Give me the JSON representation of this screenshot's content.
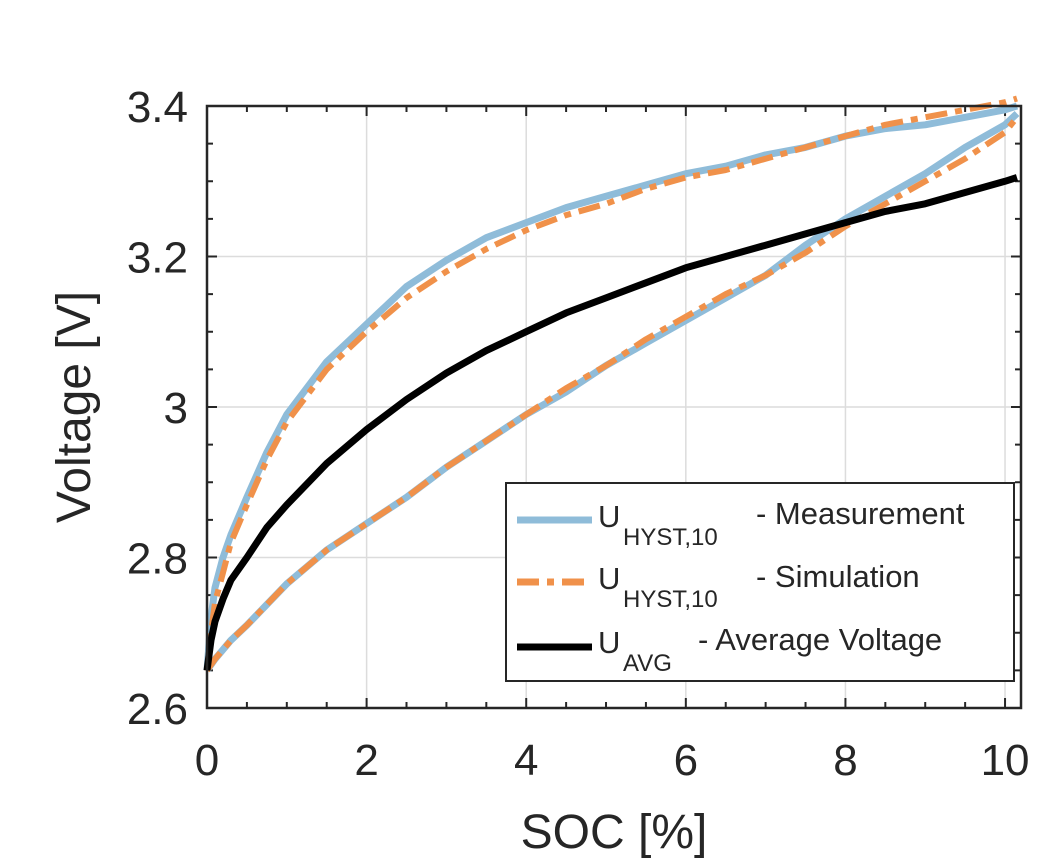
{
  "chart_data": {
    "type": "line",
    "xlabel": "SOC [%]",
    "ylabel": "Voltage [V]",
    "xlim": [
      0,
      10.2
    ],
    "ylim": [
      2.6,
      3.4
    ],
    "xticks": [
      0,
      2,
      4,
      6,
      8,
      10
    ],
    "xtick_labels": [
      "0",
      "2",
      "4",
      "6",
      "8",
      "10"
    ],
    "yticks": [
      2.6,
      2.8,
      3.0,
      3.2,
      3.4
    ],
    "ytick_labels": [
      "2.6",
      "2.8",
      "3",
      "3.2",
      "3.4"
    ],
    "grid": true,
    "legend_position": "bottom-right",
    "series": [
      {
        "name": "Measurement upper",
        "legend_main": "U",
        "legend_sub": "HYST,10",
        "legend_desc": "- Measurement",
        "color": "#8fbcd9",
        "style": "solid",
        "x": [
          0,
          0.05,
          0.1,
          0.2,
          0.3,
          0.5,
          0.75,
          1,
          1.5,
          2,
          2.5,
          3,
          3.5,
          4,
          4.5,
          5,
          5.5,
          6,
          6.5,
          7,
          7.5,
          8,
          8.5,
          9,
          9.5,
          10,
          10.15
        ],
        "y": [
          2.65,
          2.72,
          2.76,
          2.8,
          2.83,
          2.88,
          2.94,
          2.99,
          3.06,
          3.11,
          3.16,
          3.195,
          3.225,
          3.245,
          3.265,
          3.28,
          3.295,
          3.31,
          3.32,
          3.335,
          3.345,
          3.36,
          3.37,
          3.375,
          3.385,
          3.395,
          3.4
        ]
      },
      {
        "name": "Measurement lower",
        "color": "#8fbcd9",
        "style": "solid",
        "x": [
          0,
          0.1,
          0.3,
          0.5,
          1,
          1.5,
          2,
          2.5,
          3,
          3.5,
          4,
          4.5,
          5,
          5.5,
          6,
          6.5,
          7,
          7.5,
          8,
          8.5,
          9,
          9.5,
          10,
          10.15
        ],
        "y": [
          2.65,
          2.665,
          2.69,
          2.71,
          2.765,
          2.81,
          2.845,
          2.88,
          2.92,
          2.955,
          2.99,
          3.02,
          3.055,
          3.085,
          3.115,
          3.145,
          3.175,
          3.215,
          3.25,
          3.28,
          3.31,
          3.345,
          3.375,
          3.39
        ]
      },
      {
        "name": "Simulation upper",
        "legend_main": "U",
        "legend_sub": "HYST,10",
        "legend_desc": "- Simulation",
        "color": "#f0914a",
        "style": "dashdot",
        "x": [
          0,
          0.05,
          0.1,
          0.2,
          0.3,
          0.5,
          0.75,
          1,
          1.5,
          2,
          2.5,
          3,
          3.5,
          4,
          4.5,
          5,
          5.5,
          6,
          6.5,
          7,
          7.5,
          8,
          8.5,
          9,
          9.5,
          10,
          10.15
        ],
        "y": [
          2.65,
          2.7,
          2.74,
          2.78,
          2.82,
          2.87,
          2.93,
          2.98,
          3.05,
          3.1,
          3.145,
          3.18,
          3.21,
          3.235,
          3.255,
          3.27,
          3.29,
          3.305,
          3.315,
          3.33,
          3.345,
          3.36,
          3.375,
          3.385,
          3.395,
          3.405,
          3.41
        ]
      },
      {
        "name": "Simulation lower",
        "color": "#f0914a",
        "style": "dashdot",
        "x": [
          0,
          0.1,
          0.3,
          0.5,
          1,
          1.5,
          2,
          2.5,
          3,
          3.5,
          4,
          4.5,
          5,
          5.5,
          6,
          6.5,
          7,
          7.5,
          8,
          8.5,
          9,
          9.5,
          10,
          10.15
        ],
        "y": [
          2.65,
          2.665,
          2.69,
          2.71,
          2.765,
          2.81,
          2.845,
          2.88,
          2.92,
          2.955,
          2.99,
          3.025,
          3.055,
          3.09,
          3.12,
          3.15,
          3.175,
          3.205,
          3.24,
          3.27,
          3.3,
          3.33,
          3.365,
          3.385
        ]
      },
      {
        "name": "Average",
        "legend_main": "U",
        "legend_sub": "AVG",
        "legend_desc": "- Average Voltage",
        "color": "#000000",
        "style": "solid",
        "x": [
          0,
          0.05,
          0.1,
          0.2,
          0.3,
          0.5,
          0.75,
          1,
          1.5,
          2,
          2.5,
          3,
          3.5,
          4,
          4.5,
          5,
          5.5,
          6,
          6.5,
          7,
          7.5,
          8,
          8.5,
          9,
          9.5,
          10,
          10.15
        ],
        "y": [
          2.65,
          2.69,
          2.715,
          2.745,
          2.77,
          2.8,
          2.84,
          2.87,
          2.925,
          2.97,
          3.01,
          3.045,
          3.075,
          3.1,
          3.125,
          3.145,
          3.165,
          3.185,
          3.2,
          3.215,
          3.23,
          3.245,
          3.26,
          3.27,
          3.285,
          3.3,
          3.305
        ]
      }
    ]
  }
}
